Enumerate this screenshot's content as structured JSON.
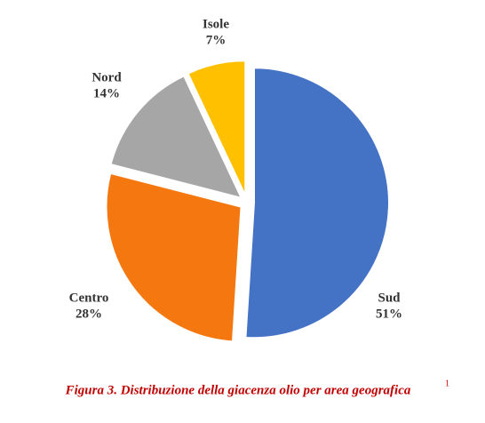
{
  "chart_data": {
    "type": "pie",
    "categories": [
      "Sud",
      "Centro",
      "Nord",
      "Isole"
    ],
    "values": [
      51,
      28,
      14,
      7
    ],
    "value_labels": [
      "51%",
      "28%",
      "14%",
      "7%"
    ],
    "colors": [
      "#4472c4",
      "#f5770f",
      "#a6a6a6",
      "#ffc000"
    ],
    "title": "Figura 3. Distribuzione della giacenza olio per area geografica",
    "title_note": "1"
  }
}
